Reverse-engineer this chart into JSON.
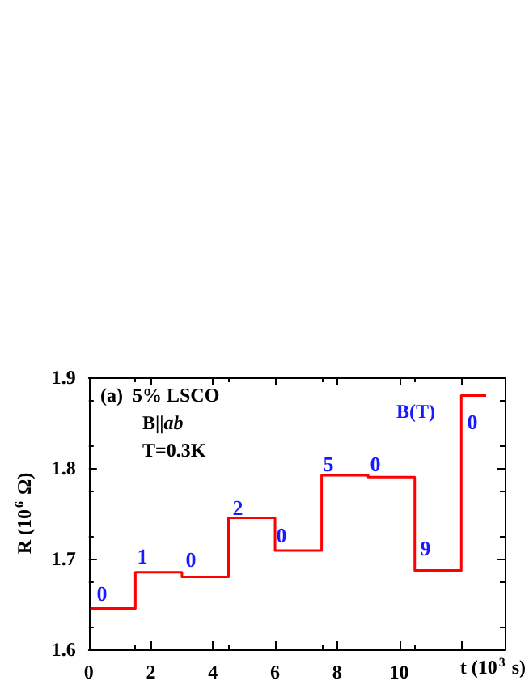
{
  "chart_data": {
    "type": "step",
    "xlabel": "t (10$^{3}$ s)",
    "ylabel": "R (10$^{6}$ Ω)",
    "x": [
      0.05,
      1.5,
      3.0,
      4.5,
      6.0,
      7.5,
      9.0,
      10.5,
      12.0,
      12.8
    ],
    "series": [
      {
        "color": "#ff0000",
        "values": [
          1.645,
          1.685,
          1.68,
          1.745,
          1.709,
          1.792,
          1.79,
          1.687,
          1.88,
          1.88
        ]
      }
    ],
    "xlim": [
      0,
      13.4
    ],
    "xticks": [
      0,
      2,
      4,
      6,
      8,
      10,
      {
        "value": 12,
        "label": null
      }
    ],
    "ylim": [
      1.6,
      1.9
    ],
    "yticks": [
      1.6,
      1.7,
      1.8,
      1.9
    ],
    "grid": false,
    "marker": "none",
    "line_style": "solid",
    "annotations": [
      "(a)  5% LSCO",
      "B||ab",
      "T=0.3K",
      "B(T)",
      "0",
      "1",
      "0",
      "2",
      "0",
      "5",
      "0",
      "9",
      "0"
    ]
  }
}
